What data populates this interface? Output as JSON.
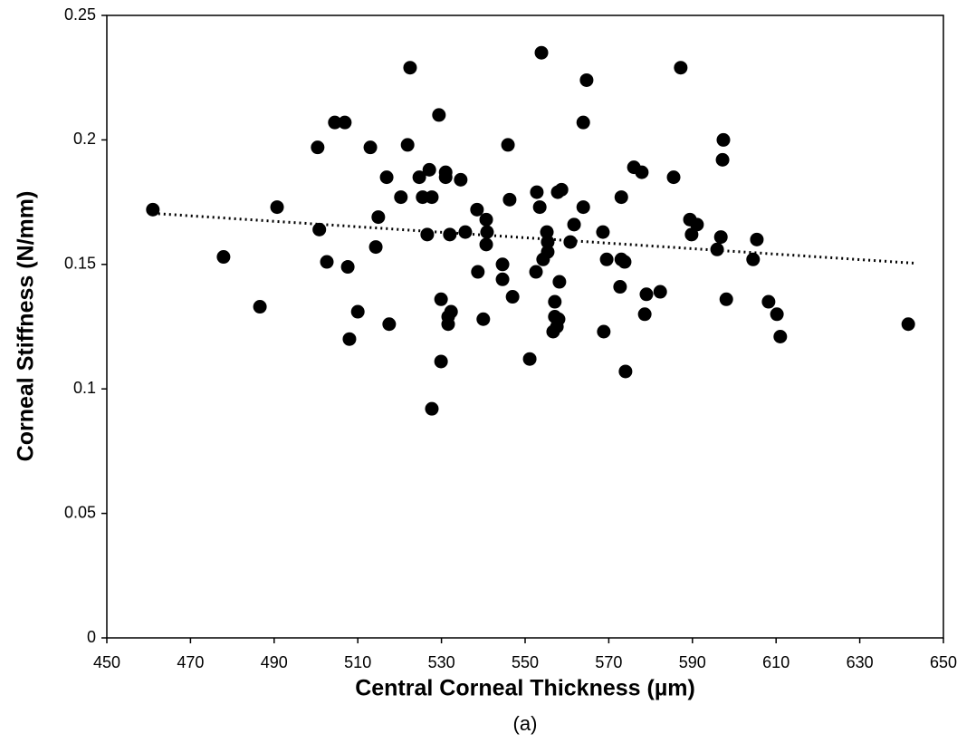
{
  "chart_data": {
    "type": "scatter",
    "x_label": "Central Corneal Thickness (µm)",
    "y_label": "Corneal Stiffness (N/mm)",
    "caption": "(a)",
    "xlim": [
      450,
      650
    ],
    "xticks": [
      450,
      470,
      490,
      510,
      530,
      550,
      570,
      590,
      610,
      630,
      650
    ],
    "ylim": [
      0,
      0.25
    ],
    "yticks": [
      0,
      0.05,
      0.1,
      0.15,
      0.2,
      0.25
    ],
    "color": "#000000",
    "x": [
      461.0,
      477.9,
      486.6,
      490.7,
      500.4,
      500.8,
      502.6,
      504.5,
      506.9,
      507.6,
      508.0,
      510.0,
      513.0,
      514.3,
      514.9,
      516.9,
      517.5,
      520.3,
      521.9,
      522.5,
      524.7,
      525.5,
      526.6,
      527.1,
      527.7,
      527.7,
      529.4,
      529.9,
      529.9,
      531.0,
      531.0,
      531.6,
      531.6,
      532.0,
      532.3,
      534.6,
      535.7,
      538.5,
      538.7,
      540.0,
      540.7,
      540.7,
      540.9,
      544.6,
      544.6,
      545.9,
      546.3,
      547.0,
      551.1,
      552.6,
      552.8,
      553.5,
      553.9,
      554.3,
      555.2,
      555.4,
      555.4,
      556.7,
      557.1,
      557.1,
      557.6,
      558.0,
      557.8,
      558.7,
      558.2,
      560.8,
      561.7,
      563.9,
      563.9,
      564.7,
      568.6,
      568.8,
      569.5,
      572.7,
      573.0,
      573.0,
      573.8,
      574.0,
      576.0,
      577.9,
      578.6,
      579.0,
      582.3,
      585.5,
      587.2,
      589.4,
      589.8,
      591.1,
      595.9,
      596.8,
      597.2,
      597.4,
      598.1,
      604.5,
      605.4,
      608.2,
      610.2,
      611.0,
      641.6
    ],
    "values": [
      0.172,
      0.153,
      0.133,
      0.173,
      0.197,
      0.164,
      0.151,
      0.207,
      0.207,
      0.149,
      0.12,
      0.131,
      0.197,
      0.157,
      0.169,
      0.185,
      0.126,
      0.177,
      0.198,
      0.229,
      0.185,
      0.177,
      0.162,
      0.188,
      0.177,
      0.092,
      0.21,
      0.136,
      0.111,
      0.187,
      0.185,
      0.129,
      0.126,
      0.162,
      0.131,
      0.184,
      0.163,
      0.172,
      0.147,
      0.128,
      0.168,
      0.158,
      0.163,
      0.15,
      0.144,
      0.198,
      0.176,
      0.137,
      0.112,
      0.147,
      0.179,
      0.173,
      0.235,
      0.152,
      0.163,
      0.159,
      0.155,
      0.123,
      0.135,
      0.129,
      0.125,
      0.128,
      0.179,
      0.18,
      0.143,
      0.159,
      0.166,
      0.207,
      0.173,
      0.224,
      0.163,
      0.123,
      0.152,
      0.141,
      0.177,
      0.152,
      0.151,
      0.107,
      0.189,
      0.187,
      0.13,
      0.138,
      0.139,
      0.185,
      0.229,
      0.168,
      0.162,
      0.166,
      0.156,
      0.161,
      0.192,
      0.2,
      0.136,
      0.152,
      0.16,
      0.135,
      0.13,
      0.121,
      0.126
    ],
    "trendline": {
      "x": [
        461,
        643
      ],
      "values": [
        0.1705,
        0.1505
      ]
    }
  }
}
